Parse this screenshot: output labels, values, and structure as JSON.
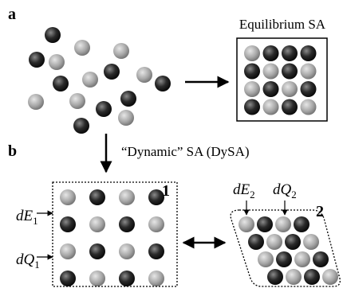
{
  "panel_a": {
    "label": "a",
    "title": "Equilibrium SA"
  },
  "panel_b": {
    "label": "b",
    "caption": "“Dynamic” SA (DySA)",
    "state_1": {
      "label": "1",
      "dE": {
        "symbol": "dE",
        "subscript": "1"
      },
      "dQ": {
        "symbol": "dQ",
        "subscript": "1"
      }
    },
    "state_2": {
      "label": "2",
      "dE": {
        "symbol": "dE",
        "subscript": "2"
      },
      "dQ": {
        "symbol": "dQ",
        "subscript": "2"
      }
    }
  }
}
